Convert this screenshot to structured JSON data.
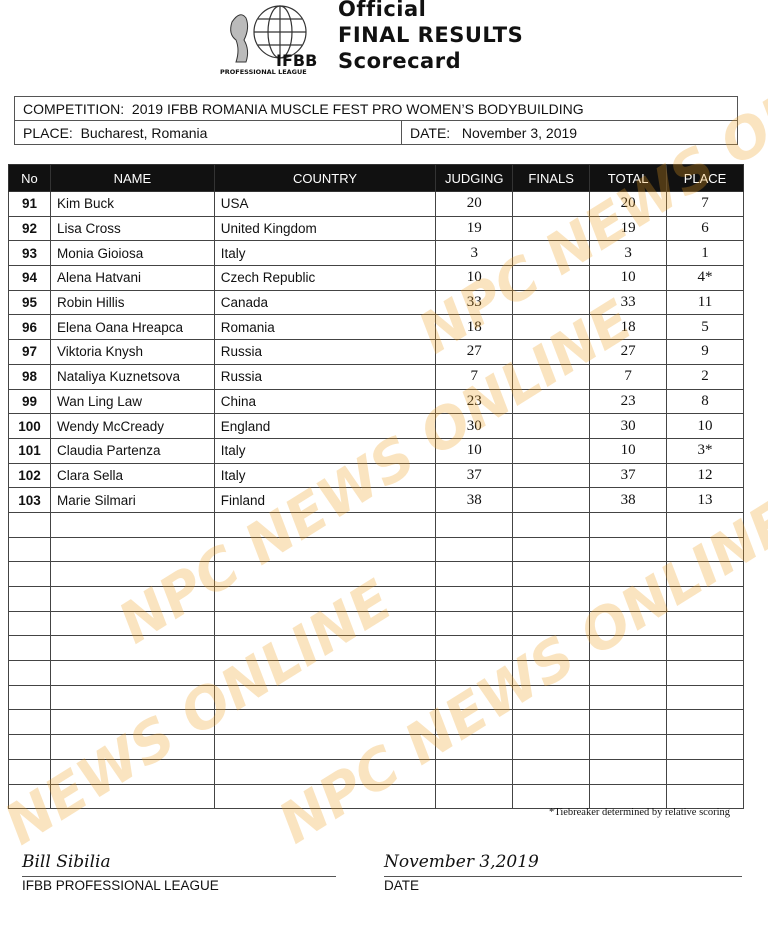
{
  "header": {
    "logo_text": "IFBB",
    "logo_subtext": "PROFESSIONAL LEAGUE",
    "title_lines": [
      "Official",
      "FINAL RESULTS",
      "Scorecard"
    ]
  },
  "info": {
    "competition_label": "COMPETITION:",
    "competition": "2019 IFBB ROMANIA MUSCLE FEST PRO WOMEN’S BODYBUILDING",
    "place_label": "PLACE:",
    "place": "Bucharest, Romania",
    "date_label": "DATE:",
    "date": "November 3, 2019"
  },
  "table": {
    "columns": [
      "No",
      "NAME",
      "COUNTRY",
      "JUDGING",
      "FINALS",
      "TOTAL",
      "PLACE"
    ],
    "rows": [
      [
        "91",
        "Kim Buck",
        "USA",
        "20",
        "",
        "20",
        "7"
      ],
      [
        "92",
        "Lisa Cross",
        "United Kingdom",
        "19",
        "",
        "19",
        "6"
      ],
      [
        "93",
        "Monia Gioiosa",
        "Italy",
        "3",
        "",
        "3",
        "1"
      ],
      [
        "94",
        "Alena Hatvani",
        "Czech Republic",
        "10",
        "",
        "10",
        "4*"
      ],
      [
        "95",
        "Robin Hillis",
        "Canada",
        "33",
        "",
        "33",
        "11"
      ],
      [
        "96",
        "Elena Oana Hreapca",
        "Romania",
        "18",
        "",
        "18",
        "5"
      ],
      [
        "97",
        "Viktoria Knysh",
        "Russia",
        "27",
        "",
        "27",
        "9"
      ],
      [
        "98",
        "Nataliya Kuznetsova",
        "Russia",
        "7",
        "",
        "7",
        "2"
      ],
      [
        "99",
        "Wan Ling Law",
        "China",
        "23",
        "",
        "23",
        "8"
      ],
      [
        "100",
        "Wendy McCready",
        "England",
        "30",
        "",
        "30",
        "10"
      ],
      [
        "101",
        "Claudia Partenza",
        "Italy",
        "10",
        "",
        "10",
        "3*"
      ],
      [
        "102",
        "Clara Sella",
        "Italy",
        "37",
        "",
        "37",
        "12"
      ],
      [
        "103",
        "Marie Silmari",
        "Finland",
        "38",
        "",
        "38",
        "13"
      ]
    ],
    "empty_rows": 12
  },
  "footnote": "*Tiebreaker determined by relative scoring",
  "signature": {
    "name": "Bill Sibilia",
    "org": "IFBB PROFESSIONAL LEAGUE",
    "date": "November 3,2019",
    "date_label": "DATE"
  },
  "watermark": "NPC NEWS ONLINE"
}
